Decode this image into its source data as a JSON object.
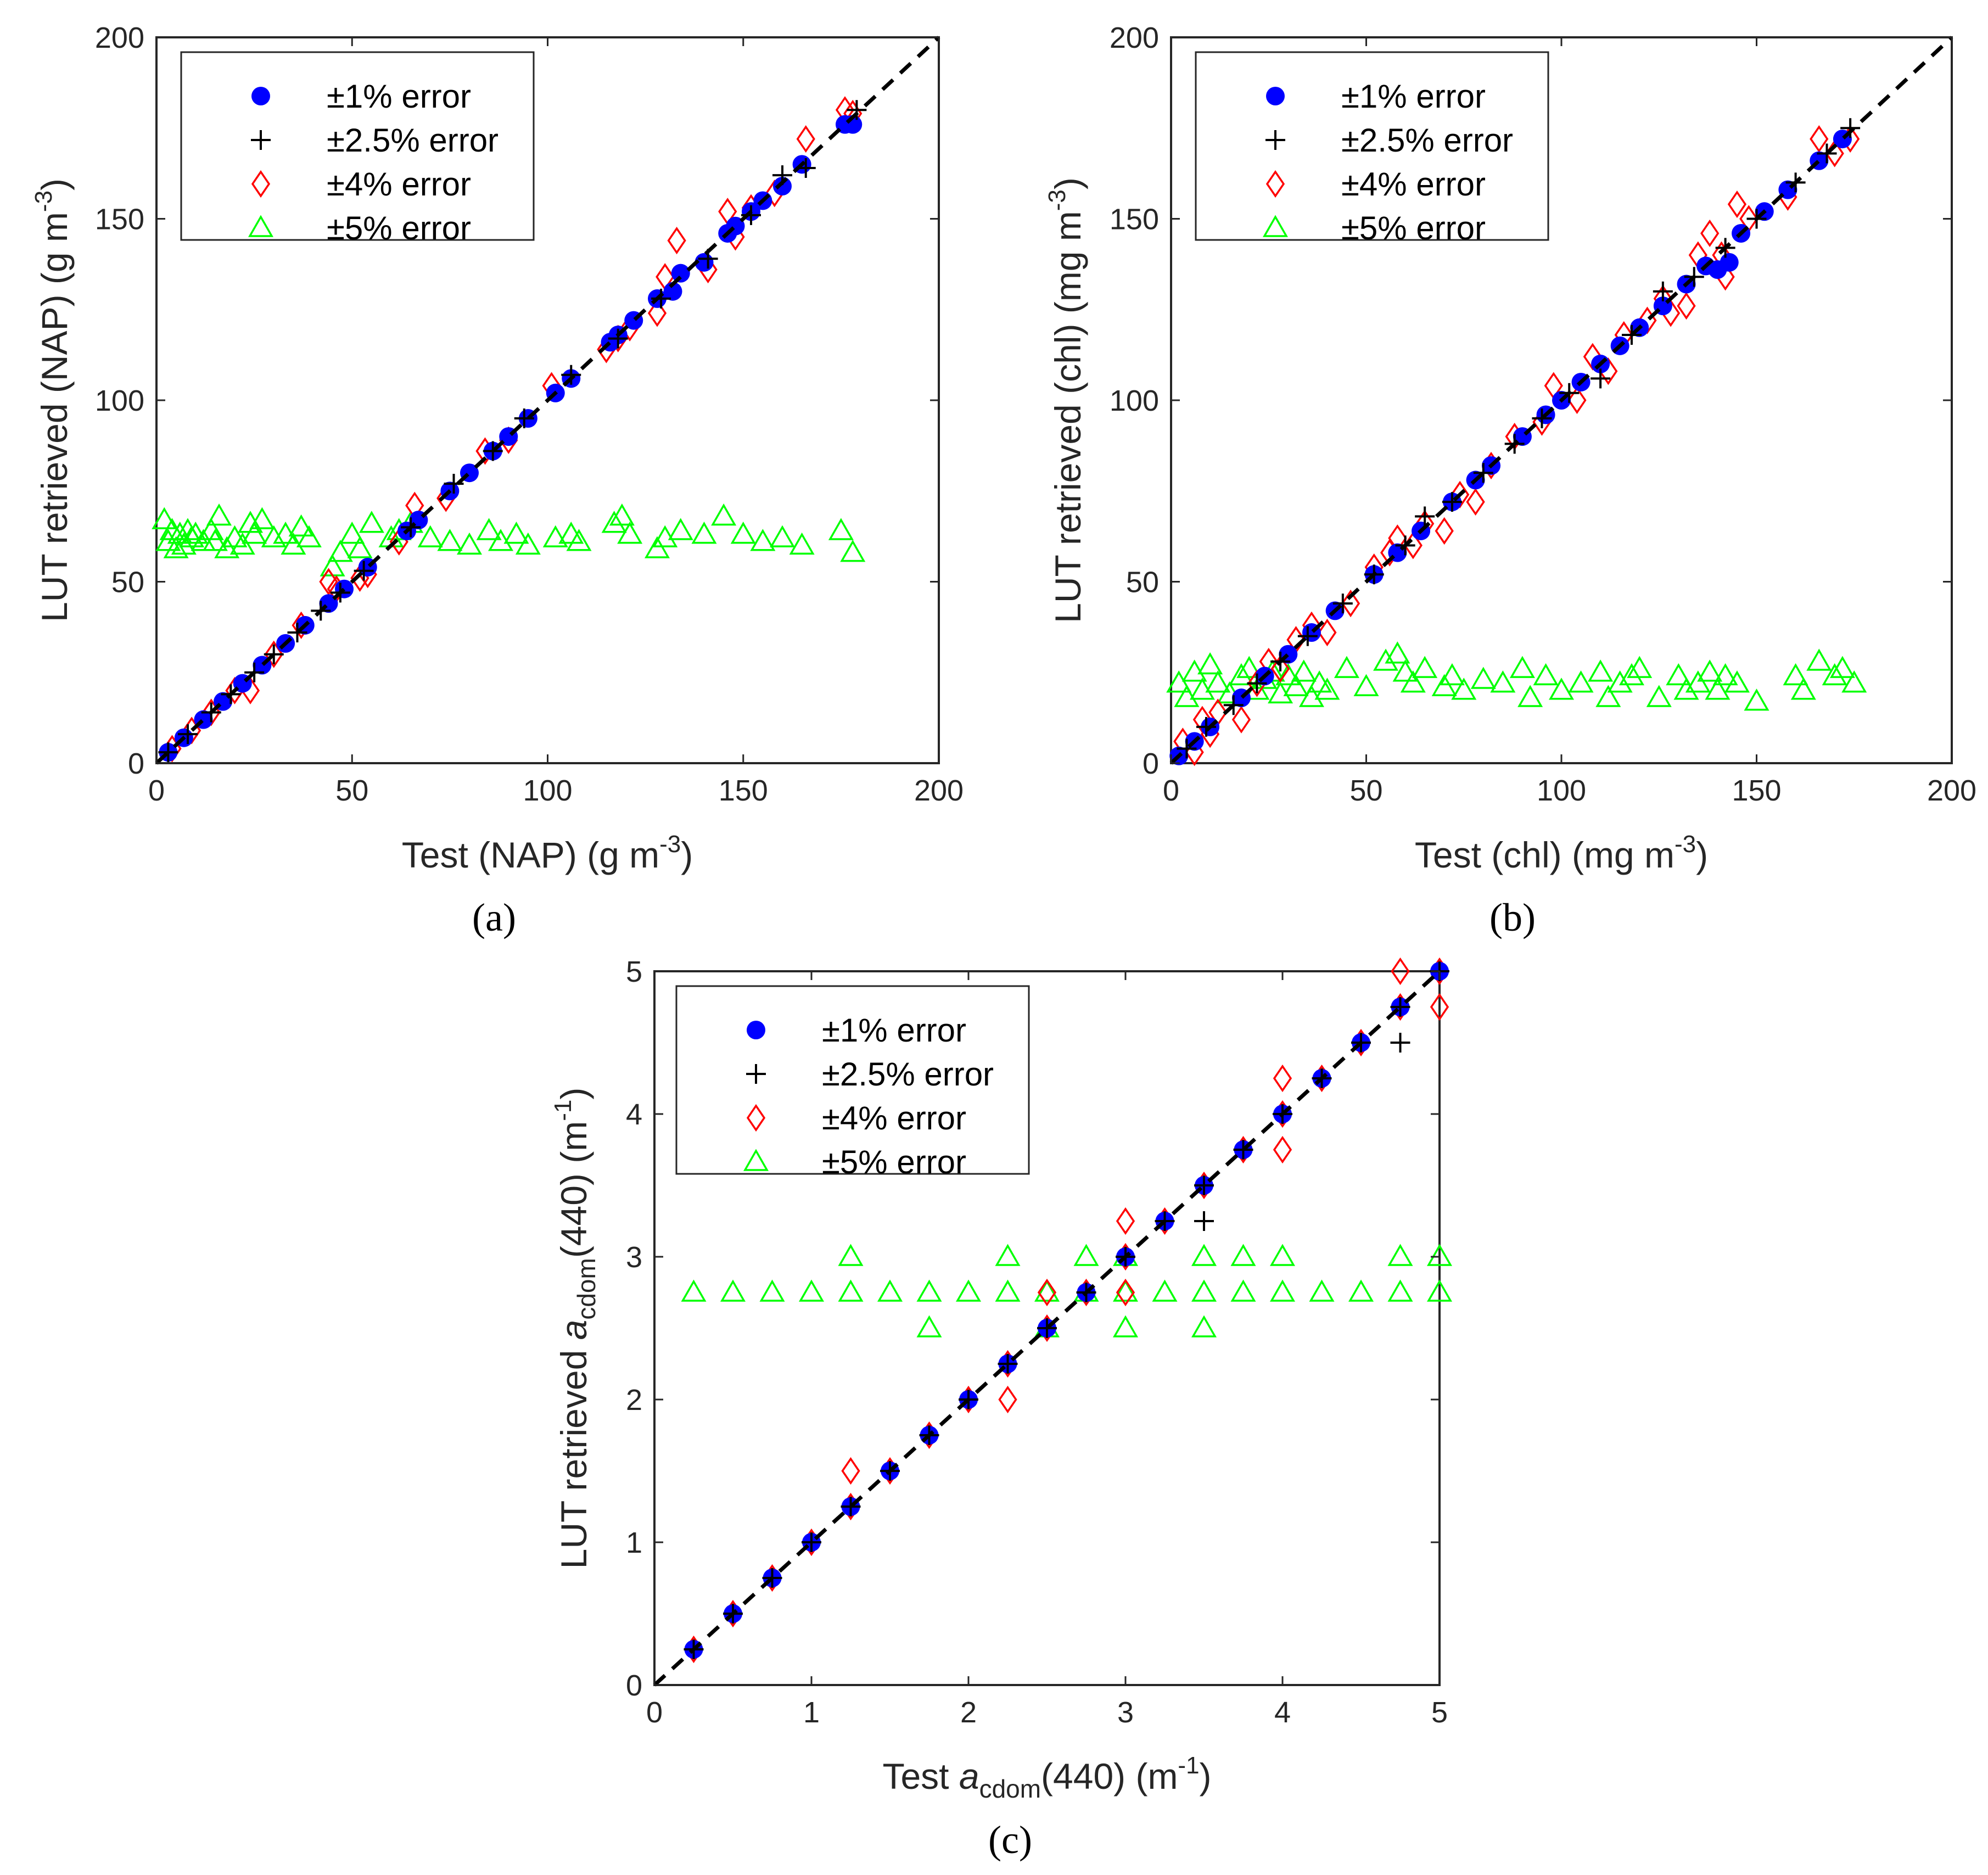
{
  "chart_data": [
    {
      "type": "scatter",
      "panel_label": "(a)",
      "xlabel_pre": "Test (NAP) (g m",
      "xlabel_sup": "-3",
      "xlabel_post": ")",
      "ylabel_pre": "LUT retrieved (NAP) (g m",
      "ylabel_sup": "-3",
      "ylabel_post": ")",
      "xlim": [
        0,
        200
      ],
      "ylim": [
        0,
        200
      ],
      "xticks": [
        "0",
        "50",
        "100",
        "150",
        "200"
      ],
      "yticks": [
        "0",
        "50",
        "100",
        "150",
        "200"
      ],
      "legend_position": "top-left",
      "one_to_one_line": true,
      "one_to_one": [
        {
          "test": 0,
          "retrieved": 0
        },
        {
          "test": 200,
          "retrieved": 200
        }
      ],
      "series": [
        {
          "name": "±1% error",
          "marker": "filled-circle",
          "color": "#0000ff",
          "x": [
            3,
            7,
            12,
            17,
            22,
            27,
            33,
            38,
            44,
            48,
            54,
            64,
            67,
            75,
            80,
            86,
            90,
            95,
            102,
            106,
            116,
            118,
            122,
            128,
            132,
            134,
            140,
            146,
            148,
            152,
            155,
            160,
            165,
            176,
            178
          ],
          "y": [
            3,
            7,
            12,
            17,
            22,
            27,
            33,
            38,
            44,
            48,
            54,
            64,
            67,
            75,
            80,
            86,
            90,
            95,
            102,
            106,
            116,
            118,
            122,
            128,
            130,
            135,
            138,
            146,
            148,
            152,
            155,
            159,
            165,
            176,
            176
          ]
        },
        {
          "name": "±2.5% error",
          "marker": "plus",
          "color": "#000000",
          "x": [
            3,
            8,
            14,
            19,
            25,
            30,
            36,
            42,
            47,
            53,
            65,
            76,
            86,
            94,
            106,
            118,
            129,
            141,
            152,
            160,
            166,
            179
          ],
          "y": [
            3,
            8,
            14,
            19,
            25,
            30,
            36,
            42,
            47,
            53,
            65,
            77,
            86,
            95,
            107,
            117,
            128,
            139,
            151,
            162,
            164,
            180
          ],
          "along_line": true
        },
        {
          "name": "±4% error",
          "marker": "diamond",
          "color": "#ff0000",
          "x": [
            4,
            9,
            14,
            20,
            24,
            30,
            37,
            44,
            46,
            52,
            54,
            62,
            66,
            74,
            84,
            90,
            101,
            115,
            118,
            121,
            128,
            130,
            133,
            141,
            146,
            148,
            152,
            158,
            166,
            176,
            178
          ],
          "y": [
            4,
            9,
            14,
            20,
            20,
            30,
            38,
            50,
            48,
            51,
            52,
            61,
            71,
            73,
            86,
            89,
            104,
            114,
            117,
            120,
            124,
            134,
            144,
            136,
            152,
            145,
            153,
            157,
            172,
            180,
            179
          ]
        },
        {
          "name": "±5% error",
          "marker": "triangle",
          "color": "#00ff00",
          "x": [
            2,
            3,
            4,
            5,
            6,
            7,
            8,
            9,
            10,
            12,
            14,
            15,
            16,
            18,
            20,
            22,
            24,
            25,
            27,
            30,
            33,
            35,
            37,
            39,
            45,
            47,
            50,
            52,
            55,
            60,
            62,
            65,
            70,
            75,
            80,
            85,
            88,
            92,
            95,
            102,
            106,
            108,
            117,
            119,
            121,
            128,
            130,
            134,
            140,
            145,
            150,
            155,
            160,
            165,
            175,
            178
          ],
          "y": [
            67,
            61,
            64,
            59,
            63,
            60,
            64,
            62,
            63,
            61,
            64,
            61,
            68,
            59,
            62,
            60,
            66,
            63,
            67,
            62,
            63,
            60,
            65,
            62,
            54,
            58,
            63,
            59,
            66,
            62,
            64,
            66,
            62,
            61,
            60,
            64,
            61,
            63,
            60,
            62,
            63,
            61,
            66,
            68,
            63,
            59,
            62,
            64,
            63,
            68,
            63,
            61,
            62,
            60,
            64,
            58
          ]
        }
      ]
    },
    {
      "type": "scatter",
      "panel_label": "(b)",
      "xlabel_pre": "Test (chl) (mg m",
      "xlabel_sup": "-3",
      "xlabel_post": ")",
      "ylabel_pre": "LUT retrieved (chl) (mg m",
      "ylabel_sup": "-3",
      "ylabel_post": ")",
      "xlim": [
        0,
        200
      ],
      "ylim": [
        0,
        200
      ],
      "xticks": [
        "0",
        "50",
        "100",
        "150",
        "200"
      ],
      "yticks": [
        "0",
        "50",
        "100",
        "150",
        "200"
      ],
      "legend_position": "top-left",
      "one_to_one_line": true,
      "one_to_one": [
        {
          "test": 0,
          "retrieved": 0
        },
        {
          "test": 200,
          "retrieved": 200
        }
      ],
      "series": [
        {
          "name": "±1% error",
          "marker": "filled-circle",
          "color": "#0000ff",
          "x": [
            2,
            6,
            10,
            18,
            24,
            30,
            36,
            42,
            52,
            58,
            64,
            72,
            78,
            82,
            90,
            96,
            100,
            105,
            110,
            115,
            120,
            126,
            132,
            137,
            140,
            143,
            146,
            152,
            158,
            166,
            172
          ],
          "y": [
            2,
            6,
            10,
            18,
            24,
            30,
            36,
            42,
            52,
            58,
            64,
            72,
            78,
            82,
            90,
            96,
            100,
            105,
            110,
            115,
            120,
            126,
            132,
            137,
            136,
            138,
            146,
            152,
            158,
            166,
            172
          ]
        },
        {
          "name": "±2.5% error",
          "marker": "plus",
          "color": "#000000",
          "x": [
            4,
            9,
            16,
            22,
            28,
            35,
            44,
            52,
            60,
            65,
            72,
            80,
            88,
            95,
            102,
            110,
            118,
            126,
            134,
            142,
            150,
            160,
            168,
            174
          ],
          "y": [
            4,
            10,
            16,
            22,
            28,
            35,
            44,
            52,
            60,
            68,
            72,
            80,
            88,
            95,
            102,
            106,
            118,
            130,
            134,
            142,
            150,
            160,
            168,
            175
          ],
          "along_line": true
        },
        {
          "name": "±4% error",
          "marker": "diamond",
          "color": "#ff0000",
          "x": [
            3,
            6,
            8,
            10,
            12,
            18,
            22,
            25,
            28,
            32,
            36,
            40,
            46,
            52,
            56,
            58,
            62,
            65,
            70,
            74,
            78,
            82,
            88,
            95,
            98,
            104,
            108,
            112,
            116,
            122,
            126,
            128,
            132,
            135,
            138,
            141,
            142,
            145,
            148,
            158,
            166,
            170,
            174
          ],
          "y": [
            6,
            3,
            12,
            8,
            14,
            12,
            22,
            28,
            26,
            34,
            38,
            36,
            44,
            54,
            58,
            62,
            60,
            66,
            64,
            74,
            72,
            82,
            90,
            94,
            104,
            100,
            112,
            108,
            118,
            122,
            128,
            124,
            126,
            140,
            146,
            140,
            134,
            154,
            150,
            156,
            172,
            168,
            172
          ]
        },
        {
          "name": "±5% error",
          "marker": "triangle",
          "color": "#00ff00",
          "x": [
            2,
            4,
            6,
            8,
            10,
            12,
            15,
            18,
            20,
            22,
            24,
            26,
            28,
            30,
            32,
            34,
            36,
            38,
            40,
            45,
            50,
            55,
            58,
            60,
            62,
            65,
            70,
            72,
            75,
            80,
            85,
            90,
            92,
            96,
            100,
            105,
            110,
            112,
            115,
            118,
            120,
            125,
            130,
            132,
            135,
            138,
            140,
            142,
            145,
            150,
            160,
            162,
            166,
            170,
            172,
            175
          ],
          "y": [
            22,
            18,
            25,
            20,
            27,
            22,
            19,
            24,
            26,
            20,
            23,
            25,
            19,
            24,
            21,
            25,
            18,
            22,
            20,
            26,
            21,
            28,
            30,
            25,
            22,
            26,
            21,
            24,
            20,
            23,
            22,
            26,
            18,
            24,
            20,
            22,
            25,
            18,
            22,
            24,
            26,
            18,
            24,
            20,
            22,
            25,
            20,
            24,
            22,
            17,
            24,
            20,
            28,
            24,
            26,
            22
          ]
        }
      ]
    },
    {
      "type": "scatter",
      "panel_label": "(c)",
      "xlabel_pre": "Test ",
      "xlabel_var": "a",
      "xlabel_sub": "cdom",
      "xlabel_mid": "(440) (m",
      "xlabel_sup": "-1",
      "xlabel_post": ")",
      "ylabel_pre": "LUT retrieved ",
      "ylabel_var": "a",
      "ylabel_sub": "cdom",
      "ylabel_mid": "(440) (m",
      "ylabel_sup": "-1",
      "ylabel_post": ")",
      "xlim": [
        0,
        5
      ],
      "ylim": [
        0,
        5
      ],
      "xticks": [
        "0",
        "1",
        "2",
        "3",
        "4",
        "5"
      ],
      "yticks": [
        "0",
        "1",
        "2",
        "3",
        "4",
        "5"
      ],
      "legend_position": "top-left",
      "one_to_one_line": true,
      "one_to_one": [
        {
          "test": 0,
          "retrieved": 0
        },
        {
          "test": 5,
          "retrieved": 5
        }
      ],
      "series": [
        {
          "name": "±1% error",
          "marker": "filled-circle",
          "color": "#0000ff",
          "x": [
            0.25,
            0.5,
            0.75,
            1.0,
            1.25,
            1.5,
            1.75,
            2.0,
            2.25,
            2.5,
            2.75,
            3.0,
            3.25,
            3.5,
            3.75,
            4.0,
            4.25,
            4.5,
            4.75,
            5.0
          ],
          "y": [
            0.25,
            0.5,
            0.75,
            1.0,
            1.25,
            1.5,
            1.75,
            2.0,
            2.25,
            2.5,
            2.75,
            3.0,
            3.25,
            3.5,
            3.75,
            4.0,
            4.25,
            4.5,
            4.75,
            5.0
          ]
        },
        {
          "name": "±2.5% error",
          "marker": "plus",
          "color": "#000000",
          "x": [
            0.25,
            0.5,
            0.75,
            1.0,
            1.25,
            1.5,
            1.75,
            2.0,
            2.25,
            2.5,
            2.75,
            3.0,
            3.25,
            3.5,
            3.5,
            3.75,
            4.0,
            4.25,
            4.5,
            4.75,
            4.75,
            5.0
          ],
          "y": [
            0.25,
            0.5,
            0.75,
            1.0,
            1.25,
            1.5,
            1.75,
            2.0,
            2.25,
            2.5,
            2.75,
            3.0,
            3.25,
            3.5,
            3.25,
            3.75,
            4.0,
            4.25,
            4.5,
            4.75,
            4.5,
            5.0
          ]
        },
        {
          "name": "±4% error",
          "marker": "diamond",
          "color": "#ff0000",
          "x": [
            0.25,
            0.5,
            0.75,
            1.0,
            1.25,
            1.25,
            1.5,
            1.75,
            2.0,
            2.25,
            2.25,
            2.5,
            2.5,
            2.75,
            3.0,
            3.0,
            3.0,
            3.25,
            3.5,
            3.75,
            4.0,
            4.0,
            4.0,
            4.25,
            4.5,
            4.75,
            4.75,
            5.0,
            5.0
          ],
          "y": [
            0.25,
            0.5,
            0.75,
            1.0,
            1.25,
            1.5,
            1.5,
            1.75,
            2.0,
            2.25,
            2.0,
            2.5,
            2.75,
            2.75,
            3.0,
            3.25,
            2.75,
            3.25,
            3.5,
            3.75,
            4.0,
            4.25,
            3.75,
            4.25,
            4.5,
            4.75,
            5.0,
            5.0,
            4.75
          ]
        },
        {
          "name": "±5% error",
          "marker": "triangle",
          "color": "#00ff00",
          "x": [
            0.25,
            0.5,
            0.75,
            1.0,
            1.25,
            1.25,
            1.5,
            1.75,
            1.75,
            2.0,
            2.25,
            2.25,
            2.5,
            2.5,
            2.75,
            2.75,
            3.0,
            3.0,
            3.0,
            3.25,
            3.5,
            3.5,
            3.5,
            3.75,
            3.75,
            4.0,
            4.0,
            4.25,
            4.5,
            4.75,
            4.75,
            5.0,
            5.0
          ],
          "y": [
            2.75,
            2.75,
            2.75,
            2.75,
            2.75,
            3.0,
            2.75,
            2.75,
            2.5,
            2.75,
            2.75,
            3.0,
            2.75,
            2.5,
            2.75,
            3.0,
            2.75,
            3.0,
            2.5,
            2.75,
            2.75,
            3.0,
            2.5,
            2.75,
            3.0,
            2.75,
            3.0,
            2.75,
            2.75,
            2.75,
            3.0,
            2.75,
            3.0
          ]
        }
      ]
    }
  ]
}
